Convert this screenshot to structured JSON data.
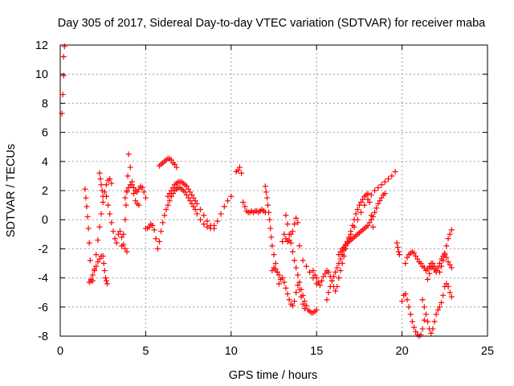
{
  "chart_data": {
    "type": "scatter",
    "title": "Day 305 of 2017, Sidereal Day-to-day VTEC variation (SDTVAR) for receiver maba",
    "xlabel": "GPS time / hours",
    "ylabel": "SDTVAR / TECUs",
    "xlim": [
      0,
      25
    ],
    "ylim": [
      -8,
      12
    ],
    "xticks": [
      0,
      5,
      10,
      15,
      20,
      25
    ],
    "yticks": [
      -8,
      -6,
      -4,
      -2,
      0,
      2,
      4,
      6,
      8,
      10,
      12
    ],
    "grid": true,
    "marker": "+",
    "colors": {
      "series": "#ff0000",
      "grid": "#a0a0a0",
      "axes": "#000000"
    },
    "series": [
      {
        "name": "start",
        "x": [
          0.1,
          0.15,
          0.2,
          0.2,
          0.25
        ],
        "y": [
          7.3,
          8.6,
          9.9,
          11.2,
          11.9
        ]
      },
      {
        "name": "arc_1a",
        "x": [
          1.45,
          1.5,
          1.55,
          1.6,
          1.65,
          1.7,
          1.75,
          1.8
        ],
        "y": [
          2.1,
          1.5,
          0.9,
          0.2,
          -0.6,
          -1.6,
          -2.8,
          -4.2
        ]
      },
      {
        "name": "arc_1b",
        "x": [
          1.7,
          1.8,
          1.9,
          2.0,
          2.1,
          2.2,
          2.3,
          2.4
        ],
        "y": [
          -4.3,
          -4.1,
          -3.8,
          -3.5,
          -3.2,
          -2.9,
          -2.7,
          -2.5
        ]
      },
      {
        "name": "arc_1c",
        "x": [
          1.9,
          2.0,
          2.1,
          2.2,
          2.3,
          2.4,
          2.5,
          2.6,
          2.7,
          2.8,
          2.9,
          3.0
        ],
        "y": [
          -4.2,
          -3.4,
          -2.4,
          -1.4,
          -0.5,
          0.4,
          1.2,
          1.9,
          2.4,
          2.7,
          2.8,
          2.5
        ]
      },
      {
        "name": "arc_1d",
        "x": [
          2.5,
          2.55,
          2.6,
          2.65,
          2.7,
          2.75
        ],
        "y": [
          -2.5,
          -3.0,
          -3.5,
          -4.0,
          -4.2,
          -4.4
        ]
      },
      {
        "name": "arc_1e",
        "x": [
          2.3,
          2.35,
          2.4,
          2.45,
          2.5
        ],
        "y": [
          3.2,
          2.8,
          2.4,
          2.0,
          1.6
        ]
      },
      {
        "name": "arc_2a",
        "x": [
          2.7,
          2.8,
          2.9,
          3.0,
          3.1,
          3.2,
          3.3
        ],
        "y": [
          1.6,
          1.0,
          0.4,
          -0.2,
          -0.8,
          -1.3,
          -1.6
        ]
      },
      {
        "name": "arc_2b",
        "x": [
          3.4,
          3.5,
          3.6,
          3.7,
          3.8,
          3.9
        ],
        "y": [
          -1.0,
          -0.8,
          -1.2,
          -1.7,
          -2.0,
          -2.2
        ]
      },
      {
        "name": "arc_2c",
        "x": [
          3.6,
          3.7,
          3.8,
          3.85,
          3.9,
          3.95,
          4.0,
          4.1,
          4.2,
          4.3,
          4.4,
          4.5,
          4.6
        ],
        "y": [
          -1.8,
          -1.0,
          0.0,
          1.0,
          2.0,
          3.0,
          4.5,
          3.6,
          2.6,
          1.8,
          1.3,
          1.1,
          1.0
        ]
      },
      {
        "name": "arc_2d",
        "x": [
          3.8,
          3.9,
          4.0,
          4.1,
          4.2,
          4.3,
          4.4,
          4.5,
          4.6,
          4.7,
          4.8,
          4.9,
          5.0
        ],
        "y": [
          1.5,
          1.9,
          2.2,
          2.4,
          2.4,
          2.2,
          2.0,
          1.9,
          2.1,
          2.3,
          2.2,
          1.9,
          1.5
        ]
      },
      {
        "name": "arc_3",
        "x": [
          5.0,
          5.1,
          5.2,
          5.3,
          5.4,
          5.5,
          5.6,
          5.7,
          5.8,
          5.9,
          6.0,
          6.1,
          6.2,
          6.3,
          6.4,
          6.5,
          6.6,
          6.7,
          6.8,
          6.9,
          7.0,
          7.1,
          7.2,
          7.3,
          7.4,
          7.5,
          7.6,
          7.7,
          7.8,
          7.9,
          8.0,
          8.2,
          8.4,
          8.6,
          8.8,
          9.0,
          9.2,
          9.4,
          9.6,
          9.8,
          10.0
        ],
        "y": [
          -0.6,
          -0.6,
          -0.5,
          -0.3,
          -0.4,
          -0.7,
          -1.3,
          -2.0,
          -1.5,
          -0.8,
          -0.2,
          0.3,
          0.7,
          1.0,
          1.3,
          1.6,
          1.8,
          2.0,
          2.1,
          2.2,
          2.2,
          2.1,
          2.0,
          1.9,
          1.7,
          1.5,
          1.3,
          1.1,
          0.9,
          0.7,
          0.4,
          0.0,
          -0.3,
          -0.5,
          -0.6,
          -0.4,
          -0.1,
          0.4,
          0.9,
          1.3,
          1.6
        ]
      },
      {
        "name": "arc_3b",
        "x": [
          6.3,
          6.4,
          6.5,
          6.6,
          6.7,
          6.8,
          6.9,
          7.0,
          7.1,
          7.2,
          7.3,
          7.4,
          7.5,
          7.6,
          7.7,
          7.8,
          7.9,
          8.0,
          8.2,
          8.4,
          8.6,
          8.8,
          9.0
        ],
        "y": [
          1.6,
          1.8,
          2.0,
          2.2,
          2.4,
          2.5,
          2.6,
          2.6,
          2.6,
          2.5,
          2.4,
          2.3,
          2.1,
          1.9,
          1.7,
          1.5,
          1.3,
          1.1,
          0.7,
          0.3,
          -0.1,
          -0.4,
          -0.6
        ]
      },
      {
        "name": "arc_3c",
        "x": [
          5.8,
          5.9,
          6.0,
          6.1,
          6.2,
          6.3,
          6.4,
          6.5,
          6.6,
          6.7,
          6.8
        ],
        "y": [
          3.7,
          3.8,
          3.9,
          4.0,
          4.1,
          4.2,
          4.2,
          4.1,
          3.9,
          3.8,
          3.6
        ]
      },
      {
        "name": "arc_4",
        "x": [
          10.3,
          10.4,
          10.5,
          10.6,
          10.7,
          10.8,
          10.9,
          11.0,
          11.1,
          11.2,
          11.3,
          11.4,
          11.5,
          11.6,
          11.7,
          11.8,
          11.9,
          12.0
        ],
        "y": [
          3.3,
          3.4,
          3.6,
          3.2,
          1.2,
          0.9,
          0.6,
          0.5,
          0.5,
          0.6,
          0.5,
          0.6,
          0.6,
          0.5,
          0.6,
          0.7,
          0.6,
          0.5
        ]
      },
      {
        "name": "arc_5a",
        "x": [
          12.0,
          12.05,
          12.1,
          12.15,
          12.2,
          12.25,
          12.3,
          12.35,
          12.4,
          12.5,
          12.6,
          12.7,
          12.8
        ],
        "y": [
          2.3,
          1.9,
          1.5,
          1.0,
          0.5,
          0.0,
          -0.6,
          -1.2,
          -1.8,
          -2.4,
          -3.0,
          -3.6,
          -4.4
        ]
      },
      {
        "name": "arc_5b",
        "x": [
          12.4,
          12.5,
          12.6,
          12.7,
          12.8,
          12.9
        ],
        "y": [
          -3.5,
          -3.3,
          -3.4,
          -3.6,
          -3.8,
          -4.1
        ]
      },
      {
        "name": "arc_5c",
        "x": [
          13.0,
          13.1,
          13.2,
          13.3,
          13.4,
          13.5,
          13.6,
          13.7,
          13.8,
          13.9,
          14.0,
          14.2,
          14.4,
          14.6,
          14.8,
          15.0
        ],
        "y": [
          -1.5,
          -1.0,
          -1.3,
          -1.5,
          -1.4,
          -1.0,
          -0.8,
          -0.3,
          0.1,
          -0.2,
          -1.8,
          -2.8,
          -3.2,
          -3.6,
          -4.0,
          -4.4
        ]
      },
      {
        "name": "arc_5d",
        "x": [
          13.2,
          13.3,
          13.4,
          13.5,
          13.6,
          13.7,
          13.8,
          13.9,
          14.0,
          14.1,
          14.2,
          14.3,
          14.4,
          14.5,
          14.6,
          14.7,
          14.8,
          14.9,
          15.0
        ],
        "y": [
          0.3,
          -0.3,
          -1.0,
          -1.6,
          -2.2,
          -2.8,
          -3.3,
          -3.8,
          -4.3,
          -4.8,
          -5.2,
          -5.6,
          -5.9,
          -6.2,
          -6.3,
          -6.4,
          -6.4,
          -6.3,
          -6.2
        ]
      },
      {
        "name": "arc_5e",
        "x": [
          13.0,
          13.1,
          13.2,
          13.3,
          13.4,
          13.5,
          13.6,
          13.7,
          13.8,
          13.9,
          14.0,
          14.1,
          14.2,
          14.3
        ],
        "y": [
          -4.0,
          -4.3,
          -4.7,
          -5.1,
          -5.5,
          -5.8,
          -5.9,
          -5.6,
          -5.0,
          -4.5,
          -4.8,
          -5.3,
          -5.8,
          -6.1
        ]
      },
      {
        "name": "arc_6",
        "x": [
          14.8,
          14.9,
          15.0,
          15.1,
          15.2,
          15.3,
          15.4,
          15.5,
          15.6,
          15.7,
          15.8,
          15.9,
          16.0,
          16.1,
          16.2,
          16.3,
          16.4,
          16.5,
          16.6,
          16.7,
          16.8,
          16.9,
          17.0,
          17.2,
          17.4,
          17.6,
          17.8,
          18.0,
          18.2,
          18.4,
          18.6,
          18.8,
          19.0,
          19.2,
          19.4,
          19.6
        ],
        "y": [
          -3.5,
          -3.8,
          -4.0,
          -4.3,
          -4.5,
          -4.2,
          -3.9,
          -3.7,
          -3.5,
          -3.6,
          -3.9,
          -4.2,
          -4.6,
          -4.9,
          -4.6,
          -4.0,
          -3.5,
          -3.0,
          -2.5,
          -2.0,
          -1.6,
          -1.3,
          -1.0,
          -0.5,
          0.0,
          0.5,
          1.0,
          1.4,
          1.7,
          2.0,
          2.2,
          2.4,
          2.6,
          2.8,
          3.0,
          3.3
        ]
      },
      {
        "name": "arc_6b",
        "x": [
          15.6,
          15.7,
          15.8,
          15.9,
          16.0,
          16.1,
          16.2,
          16.3,
          16.4,
          16.5,
          16.6,
          16.7,
          16.8,
          16.9,
          17.0,
          17.1,
          17.2,
          17.3,
          17.4,
          17.5,
          17.6,
          17.7,
          17.8,
          17.9,
          18.0,
          18.1,
          18.2,
          18.3
        ],
        "y": [
          -5.5,
          -5.0,
          -4.6,
          -4.2,
          -3.9,
          -3.6,
          -3.3,
          -3.0,
          -2.7,
          -2.4,
          -2.1,
          -1.8,
          -1.5,
          -1.2,
          -0.8,
          -0.4,
          0.0,
          0.4,
          0.7,
          1.0,
          1.2,
          1.4,
          1.6,
          1.7,
          1.8,
          1.2,
          0.3,
          -0.5
        ]
      },
      {
        "name": "arc_6c",
        "x": [
          16.3,
          16.4,
          16.5,
          16.6,
          16.7,
          16.8,
          16.9,
          17.0,
          17.1,
          17.2,
          17.3,
          17.4,
          17.5,
          17.6,
          17.7,
          17.8,
          17.9,
          18.0,
          18.1,
          18.2,
          18.3,
          18.4,
          18.5,
          18.6,
          18.7,
          18.8,
          18.9,
          19.0
        ],
        "y": [
          -2.4,
          -2.2,
          -2.0,
          -1.9,
          -1.7,
          -1.6,
          -1.5,
          -1.4,
          -1.3,
          -1.2,
          -1.1,
          -1.0,
          -0.9,
          -0.8,
          -0.7,
          -0.6,
          -0.5,
          -0.4,
          -0.2,
          0.0,
          0.2,
          0.5,
          0.8,
          1.1,
          1.3,
          1.5,
          1.7,
          1.8
        ]
      },
      {
        "name": "arc_7a",
        "x": [
          19.7,
          19.75,
          19.8,
          19.85
        ],
        "y": [
          -1.6,
          -1.9,
          -2.2,
          -2.4
        ]
      },
      {
        "name": "arc_7b",
        "x": [
          20.0,
          20.1,
          20.2,
          20.3,
          20.4,
          20.5,
          20.6,
          20.7,
          20.8,
          20.9,
          21.0,
          21.1,
          21.2,
          21.3
        ],
        "y": [
          -5.6,
          -5.2,
          -5.1,
          -5.5,
          -6.0,
          -6.5,
          -7.0,
          -7.4,
          -7.7,
          -7.9,
          -8.0,
          -7.9,
          -7.5,
          -6.9
        ]
      },
      {
        "name": "arc_7c",
        "x": [
          20.2,
          20.3,
          20.4,
          20.5,
          20.6,
          20.7,
          20.8,
          20.9,
          21.0,
          21.1,
          21.2,
          21.3,
          21.4,
          21.5,
          21.6,
          21.7,
          21.8,
          21.9,
          22.0,
          22.1,
          22.2,
          22.3,
          22.4,
          22.5,
          22.6,
          22.7,
          22.8,
          22.9
        ],
        "y": [
          -3.0,
          -2.6,
          -2.4,
          -2.3,
          -2.2,
          -2.3,
          -2.5,
          -2.7,
          -2.9,
          -3.0,
          -3.2,
          -3.3,
          -3.5,
          -3.4,
          -3.2,
          -3.0,
          -3.2,
          -3.4,
          -3.5,
          -3.3,
          -3.0,
          -2.7,
          -2.5,
          -2.4,
          -2.6,
          -2.9,
          -3.1,
          -3.3
        ]
      },
      {
        "name": "arc_7d",
        "x": [
          21.2,
          21.3,
          21.4,
          21.5,
          21.6,
          21.7,
          21.8,
          21.9,
          22.0,
          22.1,
          22.2,
          22.3,
          22.4,
          22.5,
          22.6,
          22.7,
          22.8,
          22.9
        ],
        "y": [
          -5.5,
          -6.0,
          -6.5,
          -7.0,
          -7.5,
          -7.8,
          -7.5,
          -7.0,
          -6.5,
          -6.2,
          -6.0,
          -5.7,
          -5.2,
          -4.6,
          -4.4,
          -4.6,
          -5.0,
          -5.3
        ]
      },
      {
        "name": "arc_7e",
        "x": [
          22.2,
          22.3,
          22.4,
          22.5,
          22.6,
          22.7,
          22.8,
          22.9
        ],
        "y": [
          -3.6,
          -3.2,
          -2.8,
          -2.3,
          -1.8,
          -1.3,
          -1.0,
          -0.7
        ]
      },
      {
        "name": "arc_7f",
        "x": [
          21.5,
          21.6,
          21.7,
          21.8,
          21.9,
          22.0
        ],
        "y": [
          -4.1,
          -3.7,
          -3.3,
          -3.0,
          -3.2,
          -3.6
        ]
      }
    ]
  }
}
